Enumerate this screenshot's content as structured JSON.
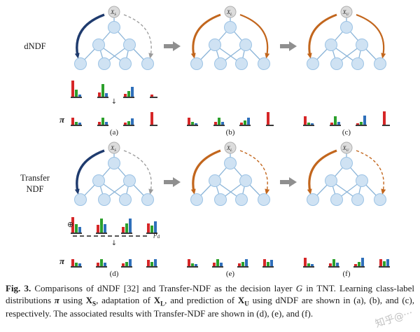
{
  "colors": {
    "edge": "#8ab4d8",
    "node_fill": "#cfe2f3",
    "node_stroke": "#9cc3e5",
    "root_fill": "#dcdcdc",
    "root_stroke": "#b0b0b0",
    "navy": "#1f3b6e",
    "orange": "#c2661d",
    "gray_arrow": "#9a9a9a",
    "block_arrow": "#8f8f8f",
    "bars": {
      "r": "#d62728",
      "g": "#2ca02c",
      "b": "#2e6fba"
    }
  },
  "figure": {
    "rows": [
      {
        "label_lines": [
          "dNDF"
        ],
        "panels": [
          {
            "label": "(a)",
            "root": {
              "base": "X",
              "sub": "S"
            },
            "arrow_left": {
              "color": "#1f3b6e",
              "width": 3.4
            },
            "arrow_right": {
              "color": "#9a9a9a",
              "width": 1.3,
              "dash": "4 3"
            },
            "down_arrow": "↓",
            "pi_label": "π",
            "leaf_charts": [
              [
                [
                  "r",
                  0.95
                ],
                [
                  "g",
                  0.4
                ],
                [
                  "b",
                  0.12
                ]
              ],
              [
                [
                  "r",
                  0.25
                ],
                [
                  "g",
                  0.75
                ],
                [
                  "b",
                  0.2
                ]
              ],
              [
                [
                  "r",
                  0.15
                ],
                [
                  "g",
                  0.35
                ],
                [
                  "b",
                  0.6
                ]
              ],
              [
                [
                  "r",
                  0.12
                ]
              ]
            ],
            "pi_charts": [
              [
                [
                  "r",
                  0.5
                ],
                [
                  "g",
                  0.18
                ],
                [
                  "b",
                  0.15
                ]
              ],
              [
                [
                  "r",
                  0.18
                ],
                [
                  "g",
                  0.5
                ],
                [
                  "b",
                  0.18
                ]
              ],
              [
                [
                  "r",
                  0.15
                ],
                [
                  "g",
                  0.25
                ],
                [
                  "b",
                  0.45
                ]
              ],
              [
                [
                  "r",
                  0.85
                ]
              ]
            ]
          },
          {
            "label": "(b)",
            "root": {
              "base": "X",
              "sub": "L"
            },
            "arrow_left": {
              "color": "#c2661d",
              "width": 3.0
            },
            "arrow_right": {
              "color": "#c2661d",
              "width": 2.2
            },
            "pi_charts": [
              [
                [
                  "r",
                  0.5
                ],
                [
                  "g",
                  0.2
                ],
                [
                  "b",
                  0.12
                ]
              ],
              [
                [
                  "r",
                  0.2
                ],
                [
                  "g",
                  0.5
                ],
                [
                  "b",
                  0.2
                ]
              ],
              [
                [
                  "r",
                  0.15
                ],
                [
                  "g",
                  0.3
                ],
                [
                  "b",
                  0.5
                ]
              ],
              [
                [
                  "r",
                  0.85
                ]
              ]
            ]
          },
          {
            "label": "(c)",
            "root": {
              "base": "X",
              "sub": "U"
            },
            "arrow_left": {
              "color": "#c2661d",
              "width": 3.0
            },
            "arrow_right": {
              "color": "#c2661d",
              "width": 2.2
            },
            "pi_charts": [
              [
                [
                  "r",
                  0.55
                ],
                [
                  "g",
                  0.15
                ],
                [
                  "b",
                  0.1
                ]
              ],
              [
                [
                  "r",
                  0.15
                ],
                [
                  "g",
                  0.55
                ],
                [
                  "b",
                  0.2
                ]
              ],
              [
                [
                  "r",
                  0.1
                ],
                [
                  "g",
                  0.2
                ],
                [
                  "b",
                  0.6
                ]
              ],
              [
                [
                  "r",
                  0.9
                ]
              ]
            ]
          }
        ]
      },
      {
        "label_lines": [
          "Transfer",
          "NDF"
        ],
        "panels": [
          {
            "label": "(d)",
            "root": {
              "base": "X",
              "sub": "S"
            },
            "arrow_left": {
              "color": "#1f3b6e",
              "width": 3.4
            },
            "arrow_right": {
              "color": "#9a9a9a",
              "width": 1.3,
              "dash": "4 3"
            },
            "down_arrow": "↓",
            "pi_label": "π",
            "oplus": "⊕",
            "pd": {
              "base": "p",
              "sub": "d"
            },
            "leaf_charts": [
              [
                [
                  "r",
                  0.9
                ],
                [
                  "g",
                  0.5
                ],
                [
                  "b",
                  0.35
                ]
              ],
              [
                [
                  "r",
                  0.45
                ],
                [
                  "g",
                  0.85
                ],
                [
                  "b",
                  0.5
                ]
              ],
              [
                [
                  "r",
                  0.35
                ],
                [
                  "g",
                  0.55
                ],
                [
                  "b",
                  0.85
                ]
              ],
              [
                [
                  "r",
                  0.55
                ],
                [
                  "g",
                  0.4
                ],
                [
                  "b",
                  0.65
                ]
              ]
            ],
            "pi_charts": [
              [
                [
                  "r",
                  0.5
                ],
                [
                  "g",
                  0.25
                ],
                [
                  "b",
                  0.18
                ]
              ],
              [
                [
                  "r",
                  0.25
                ],
                [
                  "g",
                  0.5
                ],
                [
                  "b",
                  0.25
                ]
              ],
              [
                [
                  "r",
                  0.2
                ],
                [
                  "g",
                  0.3
                ],
                [
                  "b",
                  0.5
                ]
              ],
              [
                [
                  "r",
                  0.45
                ],
                [
                  "g",
                  0.3
                ],
                [
                  "b",
                  0.5
                ]
              ]
            ]
          },
          {
            "label": "(e)",
            "root": {
              "base": "X",
              "sub": "L"
            },
            "arrow_left": {
              "color": "#c2661d",
              "width": 3.2
            },
            "arrow_right": {
              "color": "#c2661d",
              "width": 1.4,
              "dash": "4 3"
            },
            "pi_charts": [
              [
                [
                  "r",
                  0.5
                ],
                [
                  "g",
                  0.2
                ],
                [
                  "b",
                  0.15
                ]
              ],
              [
                [
                  "r",
                  0.22
                ],
                [
                  "g",
                  0.5
                ],
                [
                  "b",
                  0.25
                ]
              ],
              [
                [
                  "r",
                  0.18
                ],
                [
                  "g",
                  0.3
                ],
                [
                  "b",
                  0.5
                ]
              ],
              [
                [
                  "r",
                  0.5
                ],
                [
                  "g",
                  0.3
                ],
                [
                  "b",
                  0.45
                ]
              ]
            ]
          },
          {
            "label": "(f)",
            "root": {
              "base": "X",
              "sub": "U"
            },
            "arrow_left": {
              "color": "#c2661d",
              "width": 3.2
            },
            "arrow_right": {
              "color": "#c2661d",
              "width": 1.4,
              "dash": "4 3"
            },
            "pi_charts": [
              [
                [
                  "r",
                  0.55
                ],
                [
                  "g",
                  0.2
                ],
                [
                  "b",
                  0.15
                ]
              ],
              [
                [
                  "r",
                  0.2
                ],
                [
                  "g",
                  0.5
                ],
                [
                  "b",
                  0.25
                ]
              ],
              [
                [
                  "r",
                  0.15
                ],
                [
                  "g",
                  0.3
                ],
                [
                  "b",
                  0.55
                ]
              ],
              [
                [
                  "r",
                  0.5
                ],
                [
                  "g",
                  0.35
                ],
                [
                  "b",
                  0.5
                ]
              ]
            ]
          }
        ]
      }
    ]
  },
  "caption": {
    "segments": [
      {
        "t": "Fig. 3.",
        "b": true
      },
      {
        "t": " Comparisons of dNDF [32] and Transfer-NDF as the decision layer "
      },
      {
        "t": "G",
        "i": true
      },
      {
        "t": " in TNT. Learning class-label distributions "
      },
      {
        "t": "π",
        "b": true,
        "i": true
      },
      {
        "t": " using "
      },
      {
        "t": "X",
        "b": true
      },
      {
        "t": "S",
        "b": true,
        "sub": true
      },
      {
        "t": ", adaptation of "
      },
      {
        "t": "X",
        "b": true
      },
      {
        "t": "L",
        "b": true,
        "sub": true
      },
      {
        "t": ", and prediction of "
      },
      {
        "t": "X",
        "b": true
      },
      {
        "t": "U",
        "b": true,
        "sub": true
      },
      {
        "t": " using dNDF are shown in (a), (b), and (c), respectively. The associated results with Transfer-NDF are shown in (d), (e), and (f)."
      }
    ]
  },
  "watermark": {
    "text": "知乎@···"
  }
}
